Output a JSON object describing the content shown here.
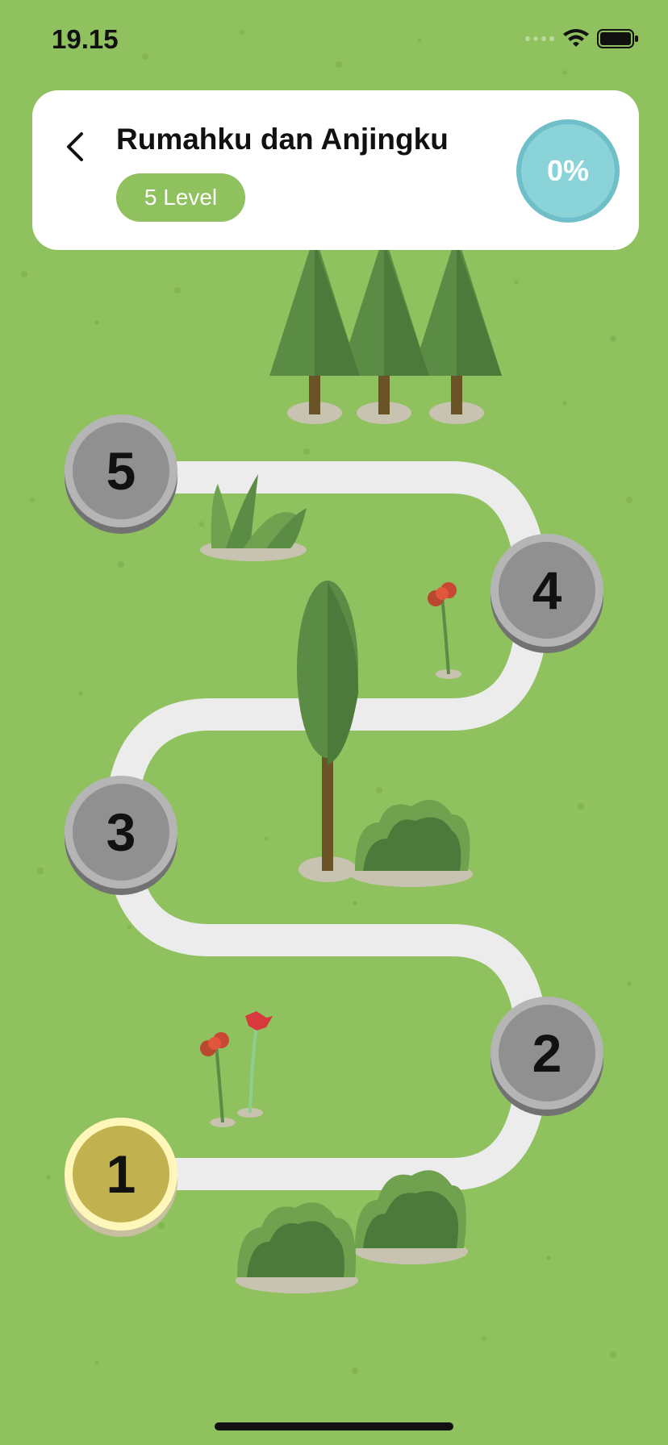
{
  "status_bar": {
    "time": "19.15"
  },
  "header": {
    "title": "Rumahku dan Anjingku",
    "level_count": "5 Level",
    "progress": "0%"
  },
  "levels": [
    {
      "label": "1",
      "state": "active"
    },
    {
      "label": "2",
      "state": "locked"
    },
    {
      "label": "3",
      "state": "locked"
    },
    {
      "label": "4",
      "state": "locked"
    },
    {
      "label": "5",
      "state": "locked"
    }
  ],
  "colors": {
    "background": "#8fc15f",
    "path": "#ececec",
    "node_locked": "#909090",
    "node_active": "#c2b24f",
    "progress": "#8ad3d8"
  }
}
